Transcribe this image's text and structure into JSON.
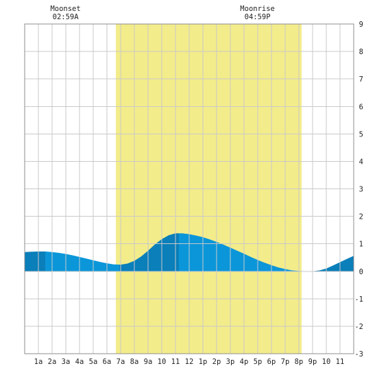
{
  "chart_data": {
    "type": "area",
    "title": "",
    "xlabel": "",
    "ylabel": "",
    "xlim": [
      0,
      24
    ],
    "ylim": [
      -3,
      9
    ],
    "x_ticks": [
      {
        "hour": 1,
        "label": "1a"
      },
      {
        "hour": 2,
        "label": "2a"
      },
      {
        "hour": 3,
        "label": "3a"
      },
      {
        "hour": 4,
        "label": "4a"
      },
      {
        "hour": 5,
        "label": "5a"
      },
      {
        "hour": 6,
        "label": "6a"
      },
      {
        "hour": 7,
        "label": "7a"
      },
      {
        "hour": 8,
        "label": "8a"
      },
      {
        "hour": 9,
        "label": "9a"
      },
      {
        "hour": 10,
        "label": "10"
      },
      {
        "hour": 11,
        "label": "11"
      },
      {
        "hour": 12,
        "label": "12"
      },
      {
        "hour": 13,
        "label": "1p"
      },
      {
        "hour": 14,
        "label": "2p"
      },
      {
        "hour": 15,
        "label": "3p"
      },
      {
        "hour": 16,
        "label": "4p"
      },
      {
        "hour": 17,
        "label": "5p"
      },
      {
        "hour": 18,
        "label": "6p"
      },
      {
        "hour": 19,
        "label": "7p"
      },
      {
        "hour": 20,
        "label": "8p"
      },
      {
        "hour": 21,
        "label": "9p"
      },
      {
        "hour": 22,
        "label": "10"
      },
      {
        "hour": 23,
        "label": "11"
      }
    ],
    "y_ticks": [
      -3,
      -2,
      -1,
      0,
      1,
      2,
      3,
      4,
      5,
      6,
      7,
      8,
      9
    ],
    "grid": true,
    "daylight": {
      "start": 6.65,
      "end": 20.2
    },
    "extremes": [
      {
        "hour": 1.5,
        "value": 0.72
      },
      {
        "hour": 6.9,
        "value": 0.24
      },
      {
        "hour": 11.25,
        "value": 1.38
      },
      {
        "hour": 20.9,
        "value": 0.0
      }
    ],
    "series": [
      {
        "x": [
          0,
          0.5,
          1,
          1.5,
          2,
          2.5,
          3,
          3.5,
          4,
          4.5,
          5,
          5.5,
          6,
          6.5,
          7,
          7.5,
          8,
          8.5,
          9,
          9.5,
          10,
          10.5,
          11,
          11.5,
          12,
          12.5,
          13,
          13.5,
          14,
          14.5,
          15,
          15.5,
          16,
          16.5,
          17,
          17.5,
          18,
          18.5,
          19,
          19.5,
          20,
          20.5,
          21,
          21.5,
          22,
          22.5,
          23,
          23.5,
          24
        ],
        "values": [
          0.7,
          0.71,
          0.72,
          0.72,
          0.7,
          0.67,
          0.63,
          0.58,
          0.52,
          0.46,
          0.4,
          0.34,
          0.29,
          0.25,
          0.24,
          0.28,
          0.38,
          0.54,
          0.75,
          0.98,
          1.17,
          1.31,
          1.38,
          1.38,
          1.35,
          1.3,
          1.24,
          1.16,
          1.07,
          0.97,
          0.86,
          0.75,
          0.64,
          0.52,
          0.41,
          0.31,
          0.22,
          0.14,
          0.08,
          0.03,
          0.01,
          0.0,
          0.0,
          0.03,
          0.1,
          0.21,
          0.33,
          0.45,
          0.56
        ]
      }
    ],
    "annotations": [
      {
        "hour": 2.98,
        "label": "Moonset",
        "time": "02:59A"
      },
      {
        "hour": 16.98,
        "label": "Moonrise",
        "time": "04:59P"
      }
    ],
    "colors": {
      "daylight": "#f3ec8a",
      "tide": "#0b96d9",
      "tide_dark": "#0a7fba",
      "grid": "#c9c9c9"
    }
  }
}
